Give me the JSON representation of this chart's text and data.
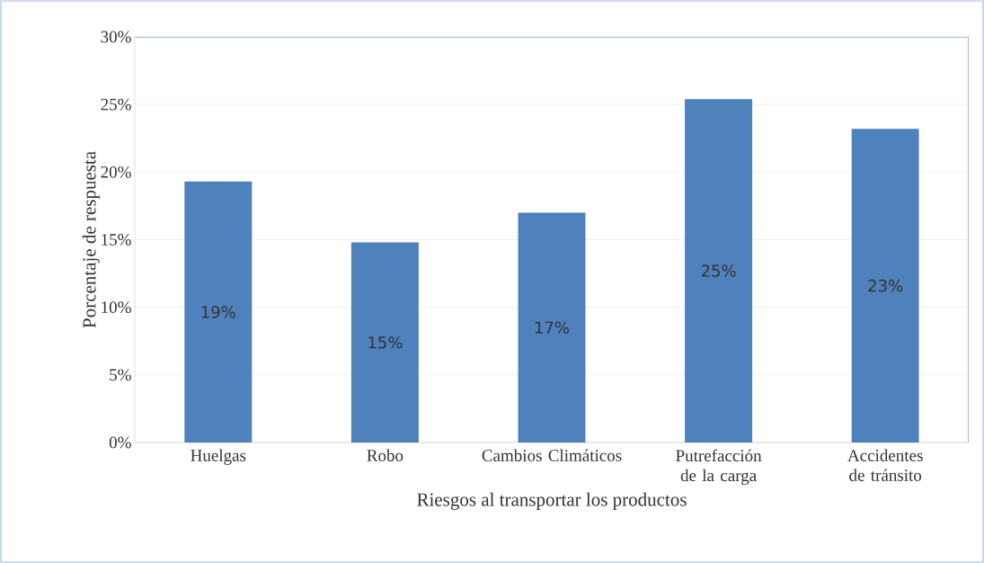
{
  "chart_data": {
    "type": "bar",
    "xlabel": "Riesgos al transportar los productos",
    "ylabel": "Porcentaje de respuesta",
    "categories": [
      "Huelgas",
      "Robo",
      "Cambios Climáticos",
      "Putrefacción de la carga",
      "Accidentes de tránsito"
    ],
    "values": [
      19.3,
      14.8,
      17.0,
      25.4,
      23.2
    ],
    "color": "#4f81bd",
    "value_labels": [
      "19%",
      "15%",
      "17%",
      "25%",
      "23%"
    ],
    "ylim": [
      0,
      30
    ],
    "yticks": [
      {
        "value": 0,
        "label": "0%"
      },
      {
        "value": 5,
        "label": "5%"
      },
      {
        "value": 10,
        "label": "10%"
      },
      {
        "value": 15,
        "label": "15%"
      },
      {
        "value": 20,
        "label": "20%"
      },
      {
        "value": 25,
        "label": "25%"
      },
      {
        "value": 30,
        "label": "30%"
      }
    ],
    "grid": "y"
  }
}
